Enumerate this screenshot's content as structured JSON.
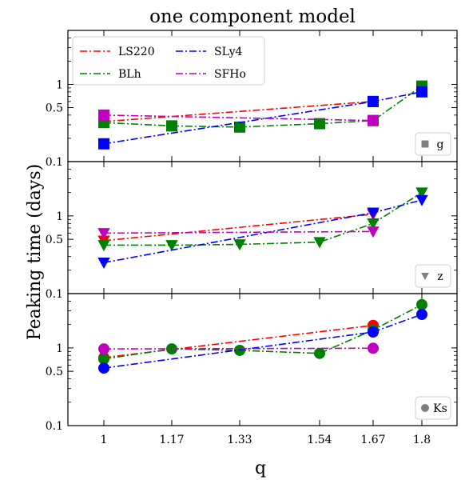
{
  "chart_data": {
    "type": "line",
    "title": "one component model",
    "xlabel": "q",
    "ylabel": "Peaking time (days)",
    "x_ticks": [
      "1",
      "1.17",
      "1.33",
      "1.54",
      "1.67",
      "1.8"
    ],
    "x": [
      1,
      1.17,
      1.33,
      1.54,
      1.67,
      1.8
    ],
    "y_tick_labels": [
      "0.1",
      "0.5",
      "1"
    ],
    "yscale": "log",
    "series_styles": [
      {
        "name": "LS220",
        "color": "#ff0000"
      },
      {
        "name": "BLh",
        "color": "#008000"
      },
      {
        "name": "SLy4",
        "color": "#0000ff"
      },
      {
        "name": "SFHo",
        "color": "#bf00bf"
      }
    ],
    "panels": [
      {
        "band": "g",
        "marker": "square",
        "ylim": [
          0.1,
          5
        ],
        "series": [
          {
            "name": "LS220",
            "x": [
              1,
              1.67
            ],
            "values": [
              0.33,
              0.6
            ]
          },
          {
            "name": "BLh",
            "x": [
              1,
              1.17,
              1.33,
              1.54,
              1.67,
              1.8
            ],
            "values": [
              0.32,
              0.29,
              0.28,
              0.31,
              0.34,
              0.95
            ]
          },
          {
            "name": "SLy4",
            "x": [
              1,
              1.67,
              1.8
            ],
            "values": [
              0.17,
              0.6,
              0.8
            ]
          },
          {
            "name": "SFHo",
            "x": [
              1,
              1.67
            ],
            "values": [
              0.4,
              0.34
            ]
          }
        ]
      },
      {
        "band": "z",
        "marker": "triangle-down",
        "ylim": [
          0.1,
          5
        ],
        "series": [
          {
            "name": "LS220",
            "x": [
              1,
              1.67
            ],
            "values": [
              0.48,
              1.05
            ]
          },
          {
            "name": "BLh",
            "x": [
              1,
              1.17,
              1.33,
              1.54,
              1.67,
              1.8
            ],
            "values": [
              0.42,
              0.42,
              0.43,
              0.46,
              0.8,
              2.0
            ]
          },
          {
            "name": "SLy4",
            "x": [
              1,
              1.67,
              1.8
            ],
            "values": [
              0.25,
              1.1,
              1.6
            ]
          },
          {
            "name": "SFHo",
            "x": [
              1,
              1.67
            ],
            "values": [
              0.6,
              0.63
            ]
          }
        ]
      },
      {
        "band": "Ks",
        "marker": "circle",
        "ylim": [
          0.1,
          5
        ],
        "series": [
          {
            "name": "LS220",
            "x": [
              1,
              1.67
            ],
            "values": [
              0.75,
              1.95
            ]
          },
          {
            "name": "BLh",
            "x": [
              1,
              1.17,
              1.33,
              1.54,
              1.67,
              1.8
            ],
            "values": [
              0.72,
              0.97,
              0.93,
              0.85,
              1.7,
              3.6
            ]
          },
          {
            "name": "SLy4",
            "x": [
              1,
              1.67,
              1.8
            ],
            "values": [
              0.55,
              1.6,
              2.7
            ]
          },
          {
            "name": "SFHo",
            "x": [
              1,
              1.67
            ],
            "values": [
              0.97,
              0.99
            ]
          }
        ]
      }
    ],
    "legend": {
      "location": "top-left",
      "panel": 0,
      "columns": 2
    }
  }
}
